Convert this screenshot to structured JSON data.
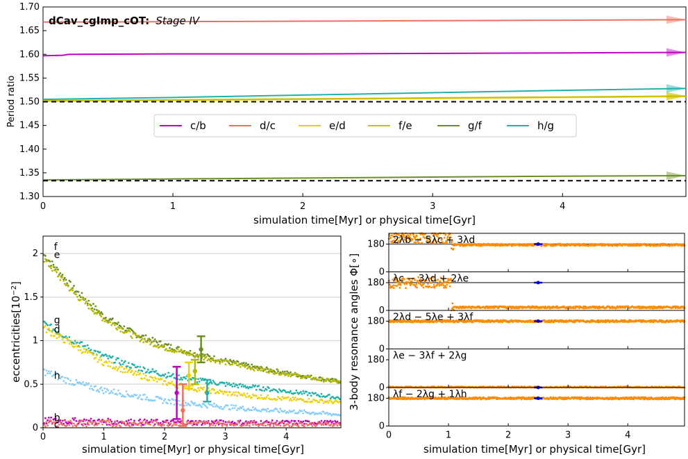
{
  "chart_data": [
    {
      "type": "line",
      "title": "dCav_cgImp_cOT:",
      "subtitle": "Stage IV",
      "xlabel": "simulation time[Myr] or physical time[Gyr]",
      "ylabel": "Period ratio",
      "xlim": [
        0,
        4.95
      ],
      "ylim": [
        1.3,
        1.7
      ],
      "xticks": [
        "0",
        "1",
        "2",
        "3",
        "4"
      ],
      "yticks": [
        "1.30",
        "1.35",
        "1.40",
        "1.45",
        "1.50",
        "1.55",
        "1.60",
        "1.65",
        "1.70"
      ],
      "legend_position": "center",
      "reference_lines": [
        1.5,
        1.3333
      ],
      "series": [
        {
          "name": "c/b",
          "color": "#c000c0",
          "x": [
            0,
            0.15,
            0.2,
            1,
            2,
            3,
            4,
            4.95
          ],
          "y": [
            1.597,
            1.598,
            1.6,
            1.601,
            1.601,
            1.602,
            1.603,
            1.604
          ]
        },
        {
          "name": "d/c",
          "color": "#f07060",
          "x": [
            0,
            1,
            2,
            3,
            4,
            4.95
          ],
          "y": [
            1.668,
            1.669,
            1.67,
            1.671,
            1.672,
            1.673
          ]
        },
        {
          "name": "e/d",
          "color": "#f0d000",
          "x": [
            0,
            1,
            2,
            3,
            4,
            4.95
          ],
          "y": [
            1.501,
            1.503,
            1.505,
            1.507,
            1.509,
            1.511
          ]
        },
        {
          "name": "f/e",
          "color": "#c8c000",
          "x": [
            0,
            1,
            2,
            3,
            4,
            4.95
          ],
          "y": [
            1.502,
            1.504,
            1.506,
            1.508,
            1.51,
            1.512
          ]
        },
        {
          "name": "g/f",
          "color": "#6b8e23",
          "x": [
            0,
            1,
            2,
            3,
            4,
            4.95
          ],
          "y": [
            1.335,
            1.337,
            1.339,
            1.341,
            1.343,
            1.344
          ]
        },
        {
          "name": "h/g",
          "color": "#20b2aa",
          "x": [
            0,
            1,
            2,
            3,
            4,
            4.95
          ],
          "y": [
            1.505,
            1.509,
            1.514,
            1.519,
            1.524,
            1.528
          ]
        }
      ]
    },
    {
      "type": "scatter",
      "xlabel": "simulation time[Myr] or physical time[Gyr]",
      "ylabel": "eccentricities[10^-2]",
      "xlim": [
        0,
        4.9
      ],
      "ylim": [
        0,
        2.2
      ],
      "xticks": [
        "0",
        "1",
        "2",
        "3",
        "4"
      ],
      "yticks": [
        "0",
        "0.5",
        "1",
        "1.5",
        "2"
      ],
      "series": [
        {
          "name": "f",
          "color": "#6b8e23",
          "x": [
            0,
            0.5,
            1,
            1.5,
            2,
            2.5,
            3,
            3.5,
            4,
            4.5,
            4.9
          ],
          "y": [
            2.0,
            1.6,
            1.28,
            1.08,
            0.95,
            0.85,
            0.77,
            0.69,
            0.63,
            0.57,
            0.53
          ]
        },
        {
          "name": "e",
          "color": "#b5b800",
          "x": [
            0,
            0.5,
            1,
            1.5,
            2,
            2.5,
            3,
            3.5,
            4,
            4.5,
            4.9
          ],
          "y": [
            1.95,
            1.55,
            1.25,
            1.05,
            0.92,
            0.83,
            0.75,
            0.68,
            0.62,
            0.56,
            0.52
          ]
        },
        {
          "name": "g",
          "color": "#20b2aa",
          "x": [
            0,
            0.5,
            1,
            1.5,
            2,
            2.5,
            3,
            3.5,
            4,
            4.5,
            4.9
          ],
          "y": [
            1.2,
            1.0,
            0.82,
            0.7,
            0.61,
            0.55,
            0.5,
            0.46,
            0.42,
            0.38,
            0.34
          ]
        },
        {
          "name": "d",
          "color": "#f0d000",
          "x": [
            0,
            0.5,
            1,
            1.5,
            2,
            2.5,
            3,
            3.5,
            4,
            4.5,
            4.9
          ],
          "y": [
            1.15,
            0.95,
            0.75,
            0.62,
            0.52,
            0.45,
            0.4,
            0.36,
            0.33,
            0.31,
            0.29
          ]
        },
        {
          "name": "h",
          "color": "#87cefa",
          "x": [
            0,
            0.5,
            1,
            1.5,
            2,
            2.5,
            3,
            3.5,
            4,
            4.5,
            4.9
          ],
          "y": [
            0.65,
            0.52,
            0.43,
            0.37,
            0.31,
            0.27,
            0.24,
            0.21,
            0.19,
            0.17,
            0.15
          ]
        },
        {
          "name": "b",
          "color": "#c000c0",
          "x": [
            0,
            1,
            2,
            3,
            4,
            4.9
          ],
          "y": [
            0.08,
            0.07,
            0.06,
            0.06,
            0.06,
            0.06
          ]
        },
        {
          "name": "c",
          "color": "#f07060",
          "x": [
            0,
            1,
            2,
            3,
            4,
            4.9
          ],
          "y": [
            0.05,
            0.05,
            0.05,
            0.05,
            0.04,
            0.04
          ]
        }
      ],
      "errorbars": [
        {
          "color": "#c000c0",
          "x": 2.2,
          "y": 0.4,
          "lo": 0.1,
          "hi": 0.7
        },
        {
          "color": "#f07060",
          "x": 2.3,
          "y": 0.2,
          "lo": 0.02,
          "hi": 0.5
        },
        {
          "color": "#f0d000",
          "x": 2.4,
          "y": 0.6,
          "lo": 0.45,
          "hi": 0.75
        },
        {
          "color": "#b5b800",
          "x": 2.5,
          "y": 0.65,
          "lo": 0.5,
          "hi": 0.78
        },
        {
          "color": "#6b8e23",
          "x": 2.6,
          "y": 0.9,
          "lo": 0.75,
          "hi": 1.05
        },
        {
          "color": "#20b2aa",
          "x": 2.7,
          "y": 0.4,
          "lo": 0.3,
          "hi": 0.55
        }
      ]
    },
    {
      "type": "scatter",
      "xlabel": "simulation time[Myr] or physical time[Gyr]",
      "ylabel": "3-body resonance angles Φ[∘]",
      "xlim": [
        0,
        4.95
      ],
      "xticks": [
        "0",
        "1",
        "2",
        "3",
        "4"
      ],
      "panels": [
        {
          "label": "2λb − 5λc + 3λd",
          "ylim": [
            0,
            250
          ],
          "yticks": [
            "0",
            "180"
          ],
          "steps": [
            [
              0,
              1.05,
              220
            ],
            [
              1.05,
              4.95,
              175
            ]
          ],
          "ref": 180
        },
        {
          "label": "λc − 3λd + 2λe",
          "ylim": [
            0,
            250
          ],
          "yticks": [
            "0",
            "180"
          ],
          "steps": [
            [
              0,
              1.05,
              180
            ],
            [
              1.05,
              4.95,
              20
            ]
          ],
          "ref": 180
        },
        {
          "label": "2λd − 5λe + 3λf",
          "ylim": [
            0,
            250
          ],
          "yticks": [
            "0",
            "180"
          ],
          "steps": [
            [
              0,
              4.95,
              180
            ]
          ],
          "ref": 180
        },
        {
          "label": "λe − 3λf + 2λg",
          "ylim": [
            0,
            250
          ],
          "yticks": [
            "0",
            "180"
          ],
          "steps": [
            [
              0,
              4.95,
              0
            ]
          ],
          "ref": 0
        },
        {
          "label": "λf − 2λg + 1λh",
          "ylim": [
            0,
            250
          ],
          "yticks": [
            "0",
            "180"
          ],
          "steps": [
            [
              0,
              4.95,
              180
            ]
          ],
          "ref": 180
        }
      ],
      "marker": {
        "x": 2.5,
        "color": "#0000cc"
      }
    }
  ],
  "labels": {
    "planet_f": "f",
    "planet_e": "e",
    "planet_g": "g",
    "planet_d": "d",
    "planet_h": "h",
    "planet_b": "b",
    "planet_c": "c"
  },
  "colors": {
    "series_main": "#ff8c00",
    "axis": "#000000",
    "gridline": "#dddddd"
  }
}
